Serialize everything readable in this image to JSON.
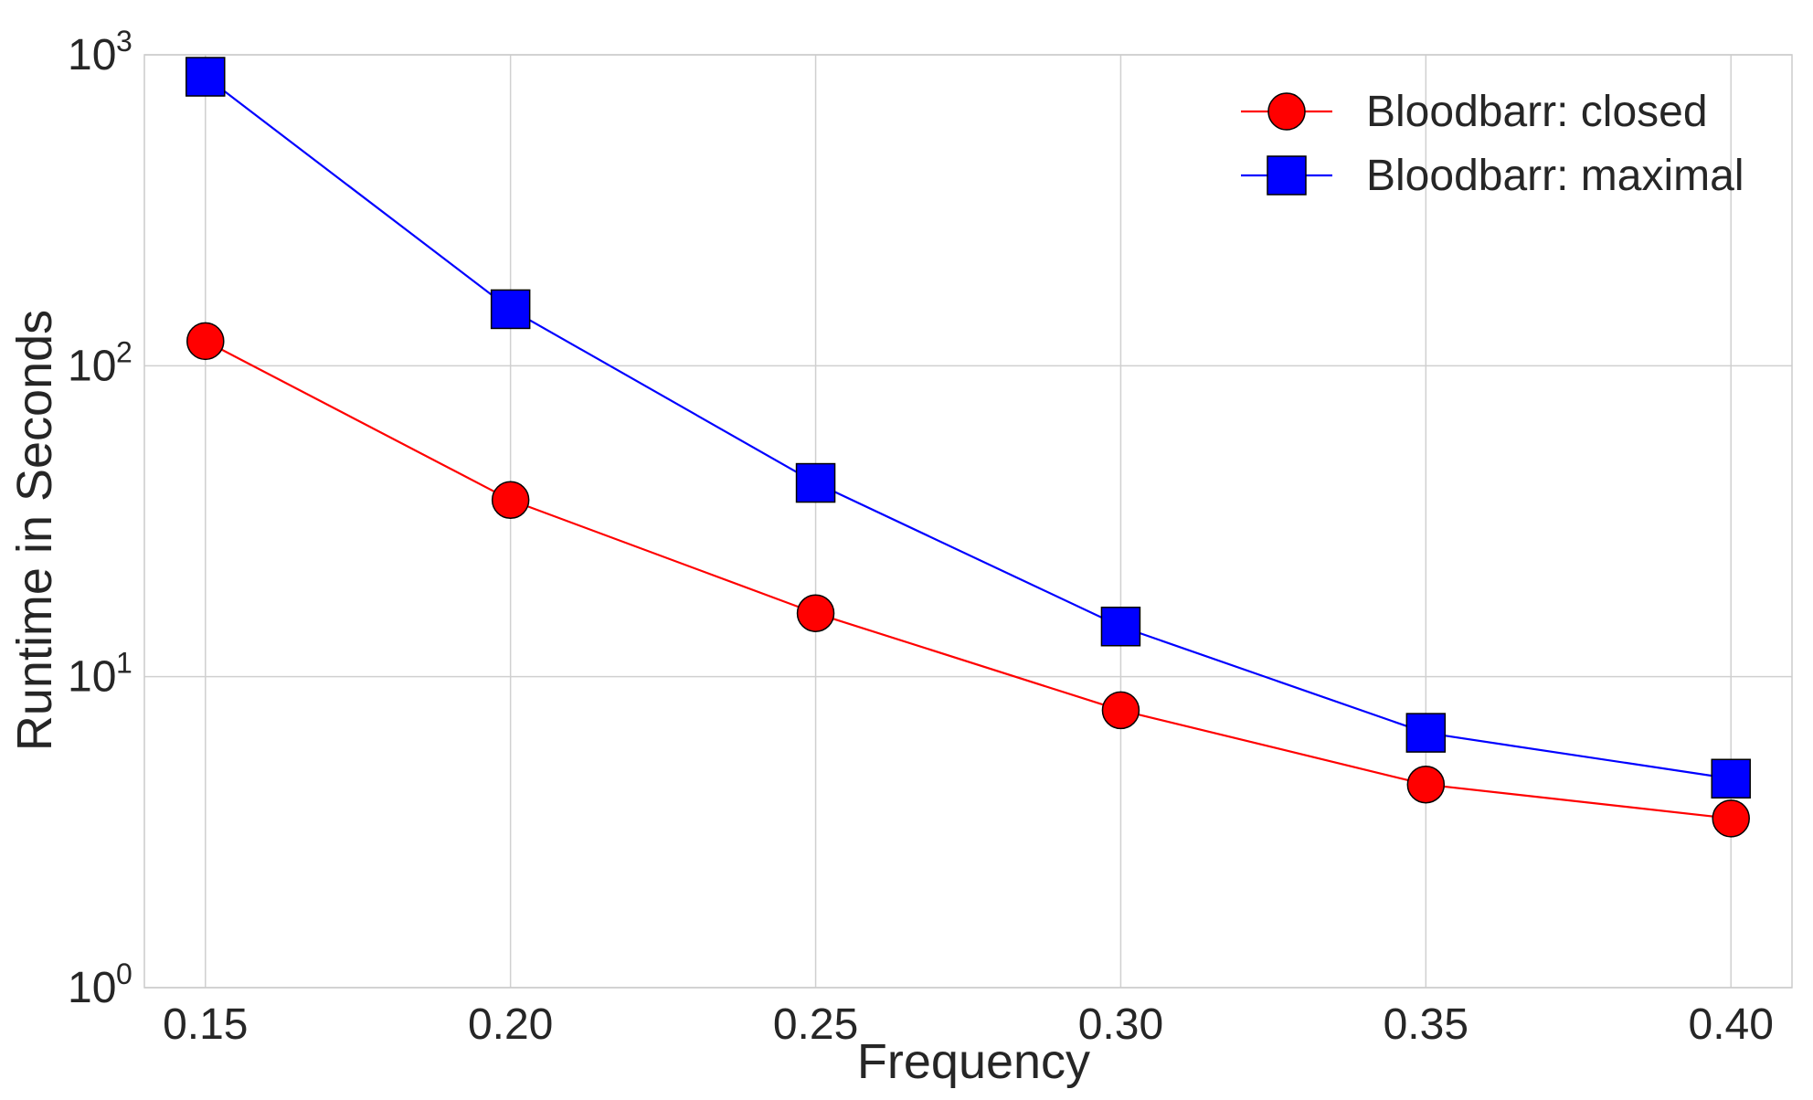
{
  "chart_data": {
    "type": "line",
    "title": "",
    "xlabel": "Frequency",
    "ylabel": "Runtime in Seconds",
    "yscale": "log",
    "ylim": [
      1,
      1000
    ],
    "xlim": [
      0.14,
      0.41
    ],
    "grid": true,
    "legend_position": "top-right",
    "x": [
      0.15,
      0.2,
      0.25,
      0.3,
      0.35,
      0.4
    ],
    "x_tick_labels": [
      "0.15",
      "0.20",
      "0.25",
      "0.30",
      "0.35",
      "0.40"
    ],
    "y_ticks": [
      {
        "value": 1,
        "base": "10",
        "exp": "0"
      },
      {
        "value": 10,
        "base": "10",
        "exp": "1"
      },
      {
        "value": 100,
        "base": "10",
        "exp": "2"
      },
      {
        "value": 1000,
        "base": "10",
        "exp": "3"
      }
    ],
    "series": [
      {
        "name": "Bloodbarr: closed",
        "color": "#ff0000",
        "marker": "circle",
        "values": [
          120,
          37,
          16,
          7.8,
          4.5,
          3.5
        ]
      },
      {
        "name": "Bloodbarr: maximal",
        "color": "#0000ff",
        "marker": "square",
        "values": [
          850,
          152,
          42,
          14.5,
          6.6,
          4.7
        ]
      }
    ]
  }
}
